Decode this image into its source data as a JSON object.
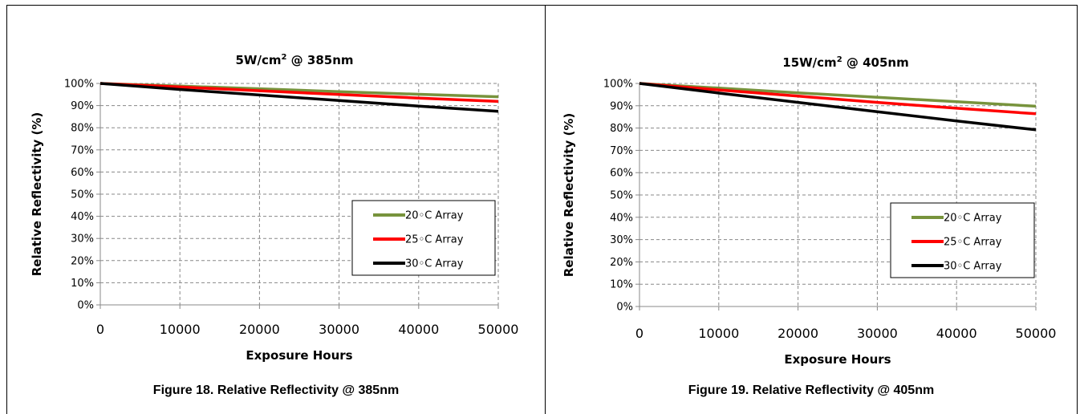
{
  "chart_data": [
    {
      "type": "line",
      "title_main": "5W/cm",
      "title_sup": "2",
      "title_rest": " @ 385nm",
      "xlabel": "Exposure Hours",
      "ylabel": "Relative Reflectivity (%)",
      "xlim": [
        0,
        50000
      ],
      "ylim": [
        0,
        100
      ],
      "x_ticks": [
        "0",
        "10000",
        "20000",
        "30000",
        "40000",
        "50000"
      ],
      "y_ticks": [
        "0%",
        "10%",
        "20%",
        "30%",
        "40%",
        "50%",
        "60%",
        "70%",
        "80%",
        "90%",
        "100%"
      ],
      "grid": true,
      "legend_position": "lower-right",
      "x": [
        0,
        10000,
        20000,
        30000,
        40000,
        50000
      ],
      "series": [
        {
          "name": "20◦C Array",
          "color": "#77933c",
          "values": [
            100,
            98.8,
            97.6,
            96.3,
            95.1,
            94.0
          ]
        },
        {
          "name": "25◦C Array",
          "color": "#ff0000",
          "values": [
            100,
            98.4,
            96.7,
            95.0,
            93.4,
            91.9
          ]
        },
        {
          "name": "30◦C Array",
          "color": "#000000",
          "values": [
            100,
            97.3,
            94.8,
            92.3,
            89.8,
            87.4
          ]
        }
      ],
      "caption": "Figure 18.  Relative Reflectivity @ 385nm"
    },
    {
      "type": "line",
      "title_main": "15W/cm",
      "title_sup": "2",
      "title_rest": " @ 405nm",
      "xlabel": "Exposure Hours",
      "ylabel": "Relative Reflectivity (%)",
      "xlim": [
        0,
        50000
      ],
      "ylim": [
        0,
        100
      ],
      "x_ticks": [
        "0",
        "10000",
        "20000",
        "30000",
        "40000",
        "50000"
      ],
      "y_ticks": [
        "0%",
        "10%",
        "20%",
        "30%",
        "40%",
        "50%",
        "60%",
        "70%",
        "80%",
        "90%",
        "100%"
      ],
      "grid": true,
      "legend_position": "lower-right",
      "x": [
        0,
        10000,
        20000,
        30000,
        40000,
        50000
      ],
      "series": [
        {
          "name": "20◦C Array",
          "color": "#77933c",
          "values": [
            100,
            97.9,
            95.8,
            93.8,
            91.8,
            89.8
          ]
        },
        {
          "name": "25◦C Array",
          "color": "#ff0000",
          "values": [
            100,
            97.1,
            94.3,
            91.5,
            88.9,
            86.4
          ]
        },
        {
          "name": "30◦C Array",
          "color": "#000000",
          "values": [
            100,
            95.7,
            91.5,
            87.3,
            83.2,
            79.2
          ]
        }
      ],
      "caption": "Figure 19.  Relative Reflectivity @ 405nm"
    }
  ]
}
